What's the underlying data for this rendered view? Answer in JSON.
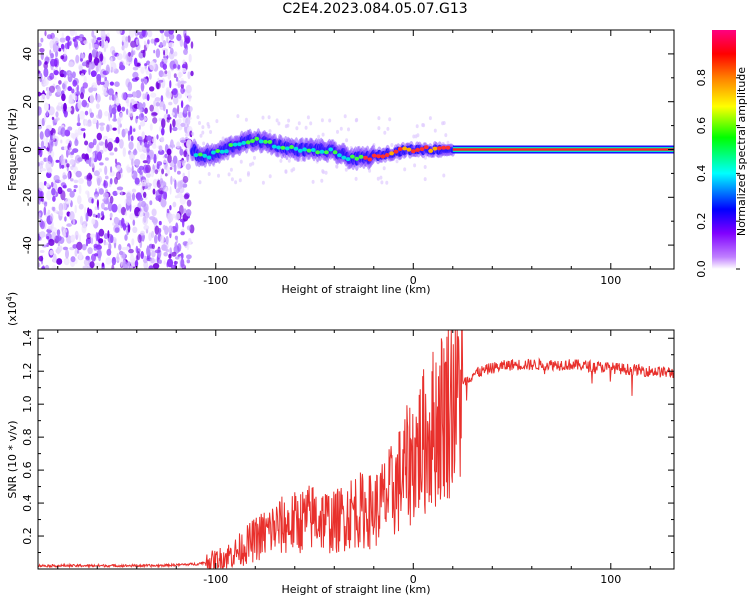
{
  "title": "C2E4.2023.084.05.07.G13",
  "chart_data": [
    {
      "type": "heatmap",
      "title": "C2E4.2023.084.05.07.G13",
      "xlabel": "Height of straight line (km)",
      "ylabel": "Frequency (Hz)",
      "xlim": [
        -190,
        132
      ],
      "ylim": [
        -50,
        50
      ],
      "xticks": [
        -100,
        0,
        100
      ],
      "yticks": [
        -40,
        -20,
        0,
        20,
        40
      ],
      "xtick_labels": [
        "-100",
        "0",
        "100"
      ],
      "ytick_labels": [
        "-40",
        "-20",
        "0",
        "20",
        "40"
      ],
      "colorbar": {
        "label": "Normalized spectral amplitude",
        "range": [
          0,
          1
        ],
        "ticks": [
          0,
          0.2,
          0.4,
          0.6,
          0.8
        ],
        "tick_labels": [
          "0.0",
          "0.2",
          "0.4",
          "0.6",
          "0.8"
        ],
        "colors": [
          "#ffffff",
          "#8000ff",
          "#0000ff",
          "#00ffff",
          "#00ff00",
          "#ffff00",
          "#ff8000",
          "#ff0000",
          "#ff0080"
        ]
      },
      "signal_track": {
        "x": [
          -110,
          -100,
          -90,
          -80,
          -70,
          -60,
          -50,
          -40,
          -30,
          -20,
          -10,
          0,
          10,
          20,
          132
        ],
        "y": [
          -3,
          -2,
          2,
          4,
          2,
          0,
          0,
          -1,
          -4,
          -3,
          -1,
          0,
          0,
          0,
          0
        ]
      }
    },
    {
      "type": "line",
      "xlabel": "Height of straight line (km)",
      "ylabel": "SNR (10 * v/v)",
      "y_multiplier_label": "(x10",
      "y_multiplier_exp": "4",
      "y_multiplier_close": ")",
      "xlim": [
        -190,
        132
      ],
      "ylim": [
        0,
        1.45
      ],
      "xticks": [
        -100,
        0,
        100
      ],
      "yticks": [
        0.2,
        0.4,
        0.6,
        0.8,
        1.0,
        1.2,
        1.4
      ],
      "xtick_labels": [
        "-100",
        "0",
        "100"
      ],
      "ytick_labels": [
        "0.2",
        "0.4",
        "0.6",
        "0.8",
        "1.0",
        "1.2",
        "1.4"
      ],
      "line_color": "#e8302c",
      "series": [
        {
          "name": "SNR",
          "x": [
            -190,
            -170,
            -150,
            -130,
            -110,
            -100,
            -90,
            -80,
            -70,
            -60,
            -50,
            -40,
            -30,
            -20,
            -10,
            0,
            10,
            20,
            30,
            40,
            50,
            60,
            70,
            80,
            90,
            100,
            110,
            120,
            132
          ],
          "y": [
            0.02,
            0.02,
            0.02,
            0.02,
            0.03,
            0.05,
            0.1,
            0.18,
            0.25,
            0.28,
            0.32,
            0.28,
            0.36,
            0.35,
            0.48,
            0.68,
            0.85,
            1.05,
            1.18,
            1.22,
            1.24,
            1.24,
            1.24,
            1.24,
            1.23,
            1.22,
            1.21,
            1.2,
            1.19
          ]
        }
      ]
    }
  ]
}
